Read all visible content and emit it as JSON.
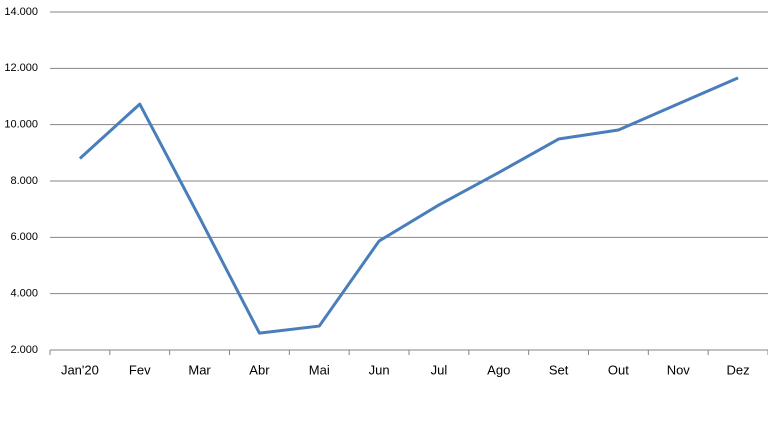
{
  "chart_data": {
    "type": "line",
    "categories": [
      "Jan'20",
      "Fev",
      "Mar",
      "Abr",
      "Mai",
      "Jun",
      "Jul",
      "Ago",
      "Set",
      "Out",
      "Nov",
      "Dez"
    ],
    "values": [
      8800,
      10730,
      6700,
      2600,
      2850,
      5870,
      7150,
      8300,
      9490,
      9810,
      10740,
      11660
    ],
    "color": "#4a7ebb",
    "ylim": [
      2000,
      14000
    ],
    "yticks": [
      {
        "value": 2000,
        "label": "2.000"
      },
      {
        "value": 4000,
        "label": "4.000"
      },
      {
        "value": 6000,
        "label": "6.000"
      },
      {
        "value": 8000,
        "label": "8.000"
      },
      {
        "value": 10000,
        "label": "10.000"
      },
      {
        "value": 12000,
        "label": "12.000"
      },
      {
        "value": 14000,
        "label": "14.000"
      }
    ],
    "grid": true
  }
}
